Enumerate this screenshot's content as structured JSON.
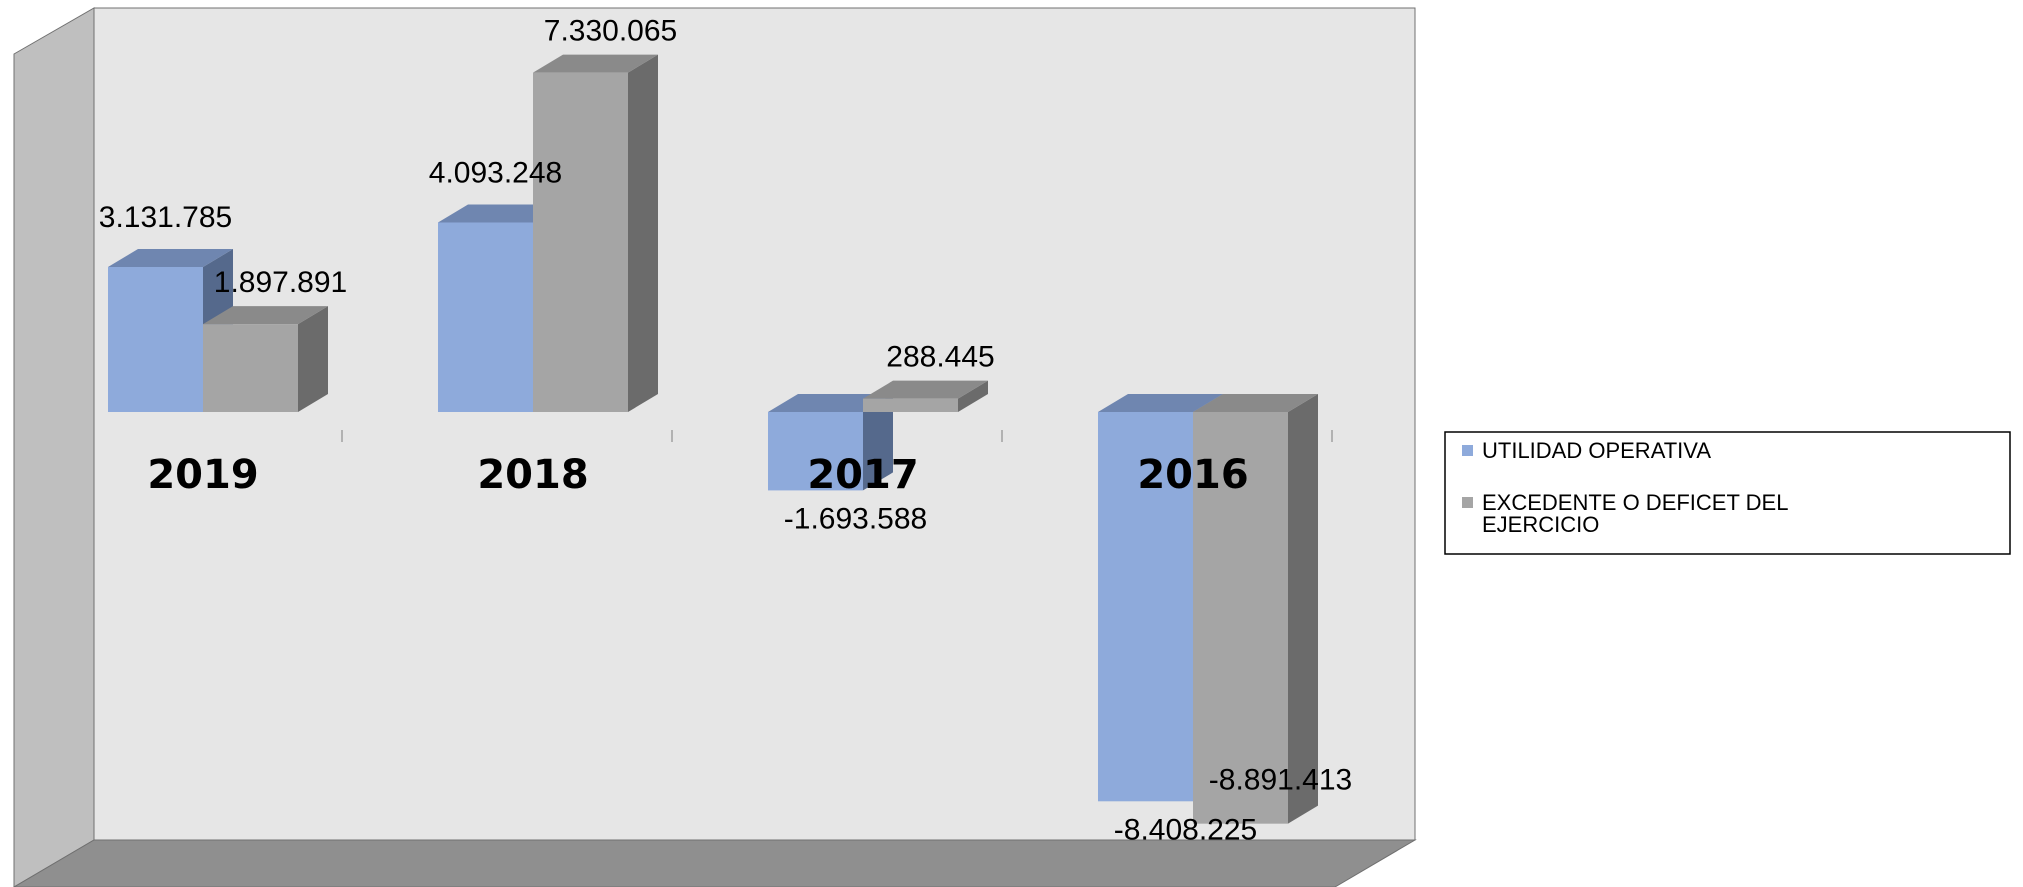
{
  "chart_data": {
    "type": "bar",
    "style": "3d-clustered-column",
    "categories": [
      "2019",
      "2018",
      "2017",
      "2016"
    ],
    "series": [
      {
        "name": "UTILIDAD OPERATIVA",
        "values": [
          3131785,
          4093248,
          -1693588,
          -8408225
        ],
        "labels": [
          "3.131.785",
          "4.093.248",
          "-1.693.588",
          "-8.408.225"
        ]
      },
      {
        "name": "EXCEDENTE O DEFICET DEL EJERCICIO",
        "values": [
          1897891,
          7330065,
          288445,
          -8891413
        ],
        "labels": [
          "1.897.891",
          "7.330.065",
          "288.445",
          "-8.891.413"
        ]
      }
    ],
    "legend": {
      "position": "right",
      "entries": [
        "UTILIDAD OPERATIVA",
        "EXCEDENTE O DEFICET DEL EJERCICIO"
      ],
      "lines": [
        [
          "UTILIDAD OPERATIVA"
        ],
        [
          "EXCEDENTE O DEFICET DEL",
          "EJERCICIO"
        ]
      ]
    },
    "colors": {
      "series": [
        "#8eaadb",
        "#a5a5a5"
      ],
      "series_top": [
        "#6f86b0",
        "#8a8a8a"
      ],
      "series_side": [
        "#55698c",
        "#6b6b6b"
      ],
      "wall": "#e6e6e6",
      "side_wall": "#bfbfbf",
      "floor": "#8f8f8f"
    },
    "ylim": [
      -10000000,
      8000000
    ],
    "grid": false
  }
}
